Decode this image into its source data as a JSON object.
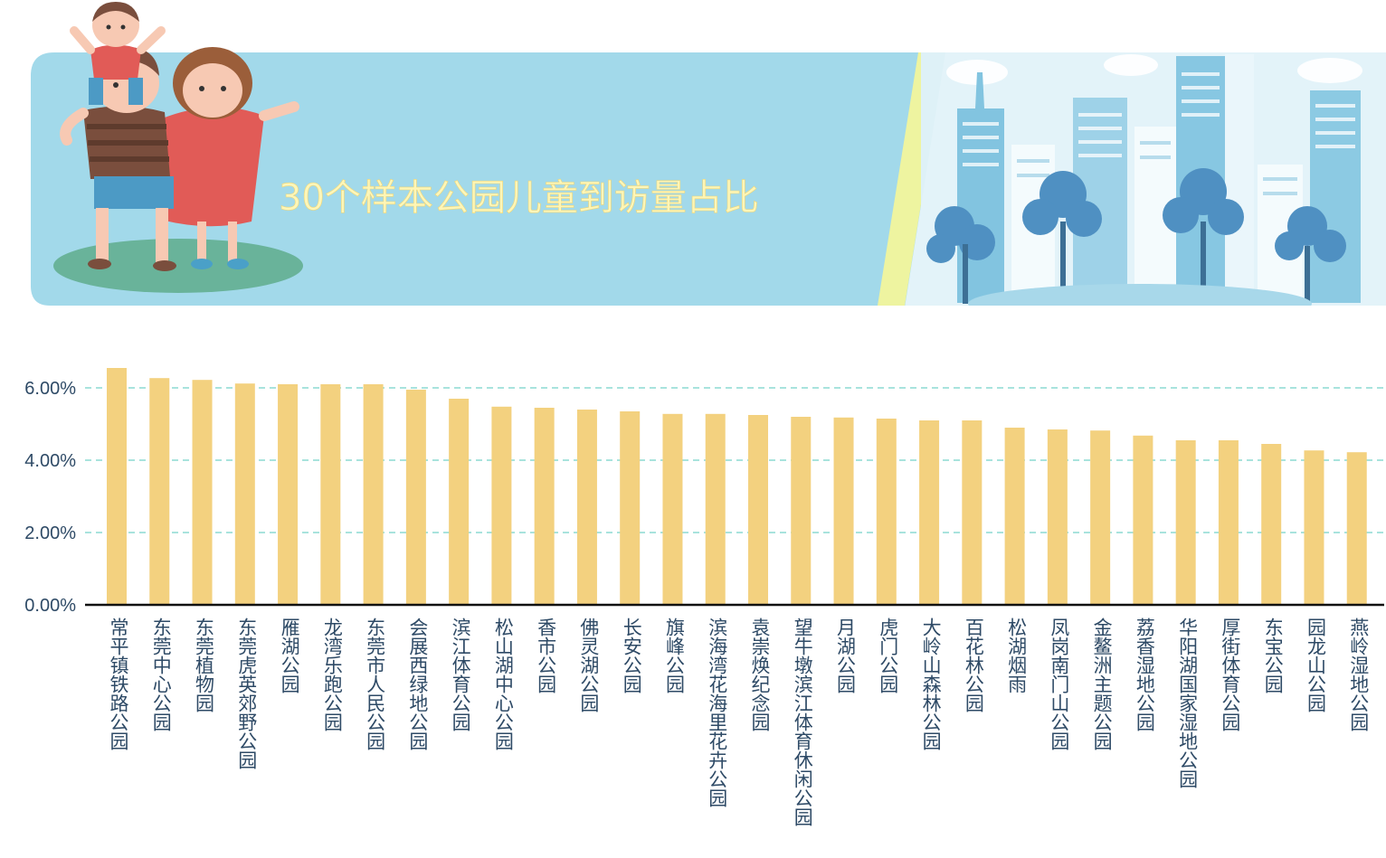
{
  "banner": {
    "title": "30个样本公园儿童到访量占比",
    "illustration": [
      "family-illustration",
      "city-skyline-illustration"
    ],
    "colors": {
      "panel": "#a2d9ea",
      "title": "#fdf6b8",
      "stripe": "#eef4a0",
      "ground": "#69b39a"
    }
  },
  "chart_data": {
    "type": "bar",
    "title": "30个样本公园儿童到访量占比",
    "categories": [
      "常平镇铁路公园",
      "东莞中心公园",
      "东莞植物园",
      "东莞虎英郊野公园",
      "雁湖公园",
      "龙湾乐跑公园",
      "东莞市人民公园",
      "会展西绿地公园",
      "滨江体育公园",
      "松山湖中心公园",
      "香市公园",
      "佛灵湖公园",
      "长安公园",
      "旗峰公园",
      "滨海湾花海里花卉公园",
      "袁崇焕纪念园",
      "望牛墩滨江体育休闲公园",
      "月湖公园",
      "虎门公园",
      "大岭山森林公园",
      "百花林公园",
      "松湖烟雨",
      "凤岗南门山公园",
      "金鳌洲主题公园",
      "荔香湿地公园",
      "华阳湖国家湿地公园",
      "厚街体育公园",
      "东宝公园",
      "园龙山公园",
      "燕岭湿地公园"
    ],
    "values": [
      6.55,
      6.27,
      6.22,
      6.12,
      6.1,
      6.1,
      6.1,
      5.95,
      5.7,
      5.48,
      5.45,
      5.4,
      5.35,
      5.28,
      5.28,
      5.25,
      5.2,
      5.18,
      5.15,
      5.1,
      5.1,
      4.9,
      4.85,
      4.82,
      4.68,
      4.55,
      4.55,
      4.45,
      4.27,
      4.22
    ],
    "yticks": [
      "0.00%",
      "2.00%",
      "4.00%",
      "6.00%"
    ],
    "ylim": [
      0,
      7
    ],
    "grid": "horizontal-dashed",
    "colors": {
      "bar": "#f3d17f",
      "grid": "#a8e3dd",
      "axis": "#111111",
      "tick_text": "#2e4a66"
    }
  }
}
